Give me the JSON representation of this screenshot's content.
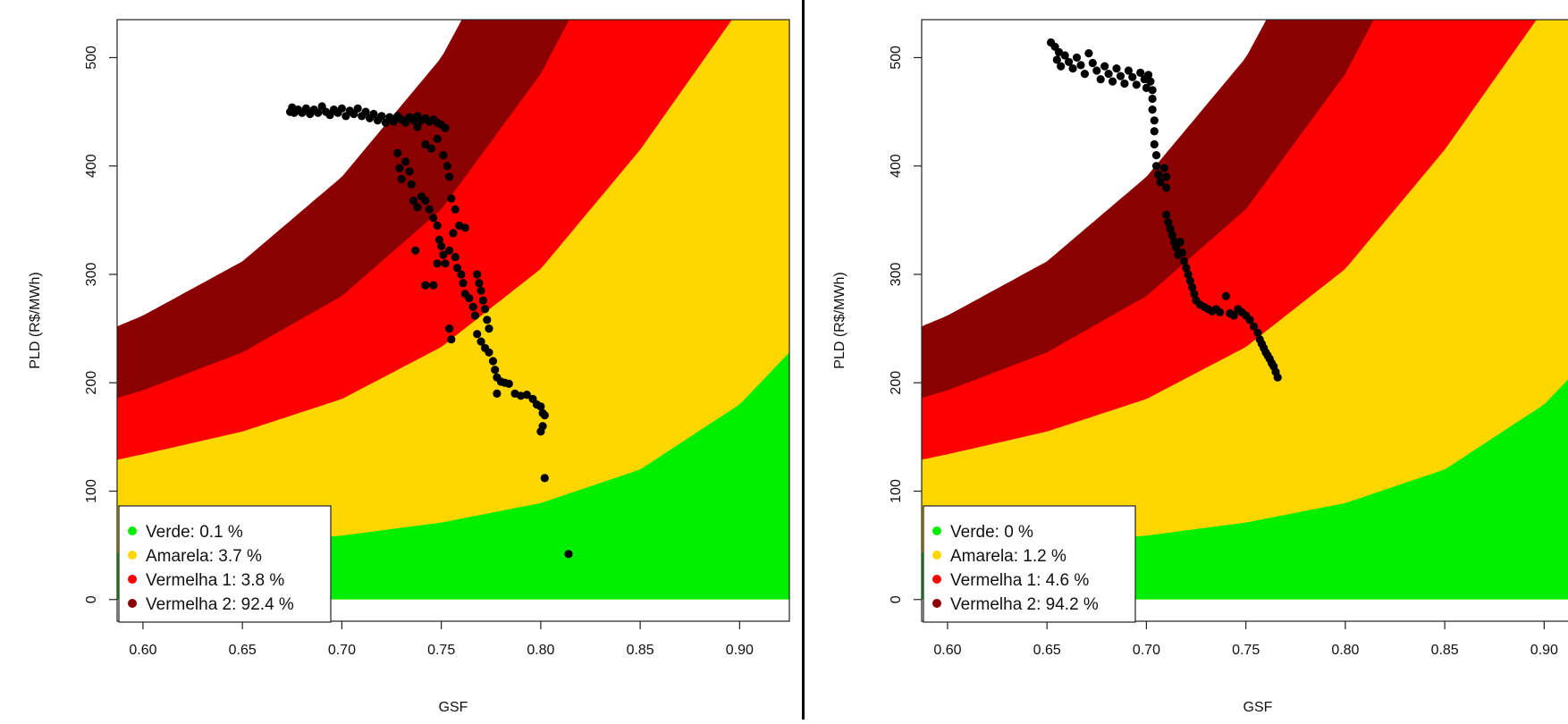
{
  "chart_data": [
    {
      "type": "scatter",
      "xlabel": "GSF",
      "ylabel": "PLD (R$/MWh)",
      "xlim": [
        0.587,
        0.925
      ],
      "ylim": [
        -20,
        535
      ],
      "xticks": [
        "0.60",
        "0.65",
        "0.70",
        "0.75",
        "0.80",
        "0.85",
        "0.90"
      ],
      "yticks": [
        "0",
        "100",
        "200",
        "300",
        "400",
        "500"
      ],
      "background_bands": [
        {
          "name": "Verde",
          "color": "#00ee00"
        },
        {
          "name": "Amarela",
          "color": "#ffd700"
        },
        {
          "name": "Vermelha 1",
          "color": "#ff0000"
        },
        {
          "name": "Vermelha 2",
          "color": "#8b0000"
        }
      ],
      "band_boundaries_pld": {
        "x": [
          0.587,
          0.6,
          0.65,
          0.7,
          0.75,
          0.8,
          0.85,
          0.9,
          0.925
        ],
        "verde_top": [
          43,
          45,
          51,
          59,
          71,
          89,
          120,
          180,
          228
        ],
        "amarela_top": [
          129,
          134,
          155,
          185,
          233,
          305,
          415,
          545,
          640
        ],
        "vermelha1_top": [
          186,
          193,
          228,
          280,
          360,
          485,
          660,
          900,
          1050
        ],
        "vermelha2_top": [
          252,
          262,
          312,
          390,
          500,
          670,
          900,
          1200,
          1400
        ]
      },
      "legend": [
        {
          "label": "Verde: 0.1 %",
          "color": "#00ee00"
        },
        {
          "label": "Amarela: 3.7 %",
          "color": "#ffd700"
        },
        {
          "label": "Vermelha 1: 3.8 %",
          "color": "#ff0000"
        },
        {
          "label": "Vermelha 2: 92.4 %",
          "color": "#8b0000"
        }
      ],
      "legend_position": "bottom-left",
      "points": [
        [
          0.674,
          450
        ],
        [
          0.675,
          454
        ],
        [
          0.676,
          449
        ],
        [
          0.678,
          452
        ],
        [
          0.68,
          449
        ],
        [
          0.682,
          453
        ],
        [
          0.684,
          448
        ],
        [
          0.686,
          452
        ],
        [
          0.688,
          449
        ],
        [
          0.69,
          455
        ],
        [
          0.692,
          450
        ],
        [
          0.694,
          447
        ],
        [
          0.696,
          452
        ],
        [
          0.698,
          449
        ],
        [
          0.7,
          453
        ],
        [
          0.702,
          446
        ],
        [
          0.704,
          451
        ],
        [
          0.706,
          448
        ],
        [
          0.708,
          453
        ],
        [
          0.71,
          446
        ],
        [
          0.712,
          450
        ],
        [
          0.714,
          444
        ],
        [
          0.716,
          448
        ],
        [
          0.718,
          442
        ],
        [
          0.72,
          446
        ],
        [
          0.722,
          440
        ],
        [
          0.724,
          445
        ],
        [
          0.726,
          441
        ],
        [
          0.728,
          446
        ],
        [
          0.73,
          443
        ],
        [
          0.732,
          440
        ],
        [
          0.734,
          445
        ],
        [
          0.736,
          442
        ],
        [
          0.738,
          446
        ],
        [
          0.74,
          442
        ],
        [
          0.742,
          444
        ],
        [
          0.744,
          441
        ],
        [
          0.746,
          443
        ],
        [
          0.748,
          440
        ],
        [
          0.75,
          438
        ],
        [
          0.752,
          435
        ],
        [
          0.738,
          436
        ],
        [
          0.742,
          420
        ],
        [
          0.745,
          416
        ],
        [
          0.748,
          425
        ],
        [
          0.751,
          410
        ],
        [
          0.753,
          400
        ],
        [
          0.754,
          390
        ],
        [
          0.728,
          412
        ],
        [
          0.729,
          398
        ],
        [
          0.73,
          388
        ],
        [
          0.732,
          404
        ],
        [
          0.734,
          395
        ],
        [
          0.735,
          383
        ],
        [
          0.736,
          368
        ],
        [
          0.738,
          362
        ],
        [
          0.74,
          372
        ],
        [
          0.742,
          368
        ],
        [
          0.744,
          360
        ],
        [
          0.746,
          352
        ],
        [
          0.748,
          345
        ],
        [
          0.749,
          332
        ],
        [
          0.75,
          326
        ],
        [
          0.751,
          318
        ],
        [
          0.752,
          310
        ],
        [
          0.754,
          322
        ],
        [
          0.756,
          338
        ],
        [
          0.757,
          316
        ],
        [
          0.758,
          306
        ],
        [
          0.76,
          300
        ],
        [
          0.755,
          370
        ],
        [
          0.757,
          360
        ],
        [
          0.759,
          345
        ],
        [
          0.762,
          343
        ],
        [
          0.737,
          322
        ],
        [
          0.742,
          290
        ],
        [
          0.746,
          290
        ],
        [
          0.748,
          310
        ],
        [
          0.754,
          250
        ],
        [
          0.755,
          240
        ],
        [
          0.761,
          292
        ],
        [
          0.762,
          282
        ],
        [
          0.764,
          278
        ],
        [
          0.766,
          270
        ],
        [
          0.767,
          262
        ],
        [
          0.768,
          300
        ],
        [
          0.769,
          292
        ],
        [
          0.77,
          285
        ],
        [
          0.771,
          276
        ],
        [
          0.772,
          268
        ],
        [
          0.773,
          258
        ],
        [
          0.774,
          250
        ],
        [
          0.768,
          245
        ],
        [
          0.77,
          238
        ],
        [
          0.772,
          232
        ],
        [
          0.774,
          228
        ],
        [
          0.776,
          220
        ],
        [
          0.777,
          212
        ],
        [
          0.778,
          205
        ],
        [
          0.78,
          201
        ],
        [
          0.782,
          200
        ],
        [
          0.784,
          199
        ],
        [
          0.778,
          190
        ],
        [
          0.787,
          190
        ],
        [
          0.79,
          188
        ],
        [
          0.793,
          189
        ],
        [
          0.796,
          185
        ],
        [
          0.798,
          180
        ],
        [
          0.8,
          178
        ],
        [
          0.801,
          172
        ],
        [
          0.802,
          170
        ],
        [
          0.8,
          155
        ],
        [
          0.801,
          160
        ],
        [
          0.802,
          112
        ],
        [
          0.814,
          42
        ]
      ]
    },
    {
      "type": "scatter",
      "xlabel": "GSF",
      "ylabel": "PLD (R$/MWh)",
      "xlim": [
        0.587,
        0.925
      ],
      "ylim": [
        -20,
        535
      ],
      "xticks": [
        "0.60",
        "0.65",
        "0.70",
        "0.75",
        "0.80",
        "0.85",
        "0.90"
      ],
      "yticks": [
        "0",
        "100",
        "200",
        "300",
        "400",
        "500"
      ],
      "background_bands": [
        {
          "name": "Verde",
          "color": "#00ee00"
        },
        {
          "name": "Amarela",
          "color": "#ffd700"
        },
        {
          "name": "Vermelha 1",
          "color": "#ff0000"
        },
        {
          "name": "Vermelha 2",
          "color": "#8b0000"
        }
      ],
      "band_boundaries_pld": {
        "x": [
          0.587,
          0.6,
          0.65,
          0.7,
          0.75,
          0.8,
          0.85,
          0.9,
          0.925
        ],
        "verde_top": [
          43,
          45,
          51,
          59,
          71,
          89,
          120,
          180,
          228
        ],
        "amarela_top": [
          129,
          134,
          155,
          185,
          233,
          305,
          415,
          545,
          640
        ],
        "vermelha1_top": [
          186,
          193,
          228,
          280,
          360,
          485,
          660,
          900,
          1050
        ],
        "vermelha2_top": [
          252,
          262,
          312,
          390,
          500,
          670,
          900,
          1200,
          1400
        ]
      },
      "legend": [
        {
          "label": "Verde: 0 %",
          "color": "#00ee00"
        },
        {
          "label": "Amarela: 1.2 %",
          "color": "#ffd700"
        },
        {
          "label": "Vermelha 1: 4.6 %",
          "color": "#ff0000"
        },
        {
          "label": "Vermelha 2: 94.2 %",
          "color": "#8b0000"
        }
      ],
      "legend_position": "bottom-left",
      "points": [
        [
          0.652,
          514
        ],
        [
          0.654,
          510
        ],
        [
          0.656,
          505
        ],
        [
          0.655,
          498
        ],
        [
          0.657,
          492
        ],
        [
          0.659,
          502
        ],
        [
          0.661,
          496
        ],
        [
          0.663,
          490
        ],
        [
          0.665,
          500
        ],
        [
          0.667,
          493
        ],
        [
          0.669,
          485
        ],
        [
          0.671,
          504
        ],
        [
          0.673,
          495
        ],
        [
          0.675,
          488
        ],
        [
          0.677,
          480
        ],
        [
          0.679,
          492
        ],
        [
          0.681,
          485
        ],
        [
          0.683,
          478
        ],
        [
          0.685,
          490
        ],
        [
          0.687,
          483
        ],
        [
          0.689,
          476
        ],
        [
          0.691,
          488
        ],
        [
          0.693,
          482
        ],
        [
          0.695,
          475
        ],
        [
          0.697,
          486
        ],
        [
          0.699,
          480
        ],
        [
          0.7,
          472
        ],
        [
          0.701,
          484
        ],
        [
          0.702,
          478
        ],
        [
          0.703,
          470
        ],
        [
          0.703,
          462
        ],
        [
          0.703,
          452
        ],
        [
          0.704,
          442
        ],
        [
          0.704,
          432
        ],
        [
          0.704,
          420
        ],
        [
          0.705,
          410
        ],
        [
          0.705,
          400
        ],
        [
          0.706,
          392
        ],
        [
          0.707,
          385
        ],
        [
          0.709,
          398
        ],
        [
          0.71,
          390
        ],
        [
          0.71,
          380
        ],
        [
          0.71,
          355
        ],
        [
          0.711,
          348
        ],
        [
          0.712,
          342
        ],
        [
          0.713,
          336
        ],
        [
          0.714,
          330
        ],
        [
          0.715,
          325
        ],
        [
          0.716,
          318
        ],
        [
          0.717,
          330
        ],
        [
          0.718,
          320
        ],
        [
          0.719,
          312
        ],
        [
          0.72,
          306
        ],
        [
          0.721,
          300
        ],
        [
          0.722,
          294
        ],
        [
          0.723,
          288
        ],
        [
          0.724,
          282
        ],
        [
          0.725,
          276
        ],
        [
          0.727,
          272
        ],
        [
          0.729,
          270
        ],
        [
          0.731,
          268
        ],
        [
          0.733,
          266
        ],
        [
          0.735,
          268
        ],
        [
          0.737,
          265
        ],
        [
          0.74,
          280
        ],
        [
          0.742,
          264
        ],
        [
          0.744,
          262
        ],
        [
          0.746,
          268
        ],
        [
          0.748,
          265
        ],
        [
          0.75,
          262
        ],
        [
          0.752,
          258
        ],
        [
          0.754,
          252
        ],
        [
          0.756,
          246
        ],
        [
          0.757,
          240
        ],
        [
          0.758,
          236
        ],
        [
          0.759,
          232
        ],
        [
          0.76,
          228
        ],
        [
          0.761,
          225
        ],
        [
          0.762,
          222
        ],
        [
          0.763,
          218
        ],
        [
          0.764,
          215
        ],
        [
          0.765,
          210
        ],
        [
          0.766,
          205
        ]
      ]
    }
  ]
}
